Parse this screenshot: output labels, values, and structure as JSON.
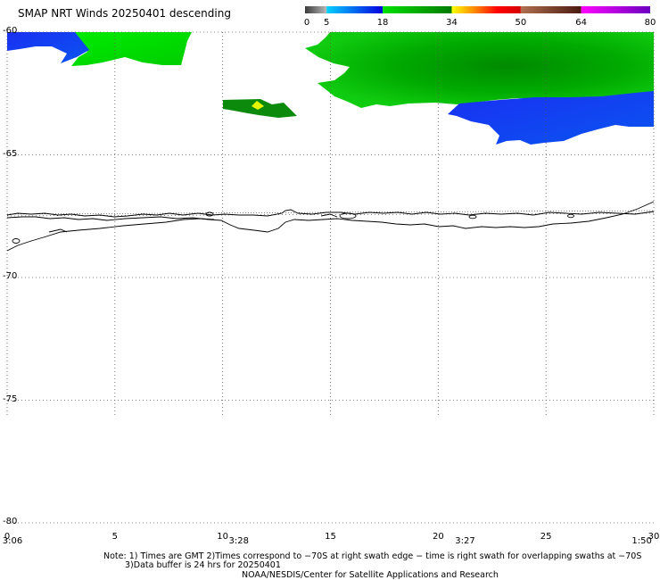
{
  "title": "SMAP NRT Winds  20250401 descending",
  "colorbar": {
    "labels": [
      "0",
      "5",
      "18",
      "34",
      "50",
      "64",
      "80"
    ],
    "segments": [
      {
        "from": 0,
        "to": 5,
        "colors": [
          "#3a3a3a",
          "#b9b9b9"
        ]
      },
      {
        "from": 5,
        "to": 18,
        "colors": [
          "#00d2ff",
          "#0000dd"
        ]
      },
      {
        "from": 18,
        "to": 34,
        "colors": [
          "#00e000",
          "#007a00"
        ]
      },
      {
        "from": 34,
        "to": 50,
        "colors": [
          "#ffff00",
          "#ff8800",
          "#ff0000",
          "#d40000"
        ]
      },
      {
        "from": 50,
        "to": 64,
        "colors": [
          "#b07050",
          "#4a1a10"
        ]
      },
      {
        "from": 64,
        "to": 80,
        "colors": [
          "#ff00ff",
          "#6a00c0"
        ]
      }
    ]
  },
  "axes": {
    "ylim": [
      -60,
      -80
    ],
    "yticks": [
      "-60",
      "-65",
      "-70",
      "-75",
      "-80"
    ],
    "xlim": [
      0,
      30
    ],
    "xticks": [
      "0",
      "5",
      "10",
      "15",
      "20",
      "25",
      "30"
    ]
  },
  "times": [
    {
      "x": 0,
      "label": "3:06"
    },
    {
      "x": 10.5,
      "label": "3:28"
    },
    {
      "x": 21,
      "label": "3:27"
    },
    {
      "x": 29.2,
      "label": "1:50"
    }
  ],
  "notes": {
    "line1": "Note: 1) Times are GMT 2)Times correspond to −70S at right swath edge − time is right swath for overlapping swaths at −70S",
    "line2": "3)Data buffer is 24 hrs for 20250401",
    "credit": "NOAA/NESDIS/Center for Satellite Applications and Research"
  },
  "colors": {
    "blue_wind": "#0733ee",
    "green_wind": "#00dd00",
    "dark_green_wind": "#009900",
    "yellow_wind": "#f5f500",
    "coast": "#000000",
    "grid": "#555555"
  }
}
